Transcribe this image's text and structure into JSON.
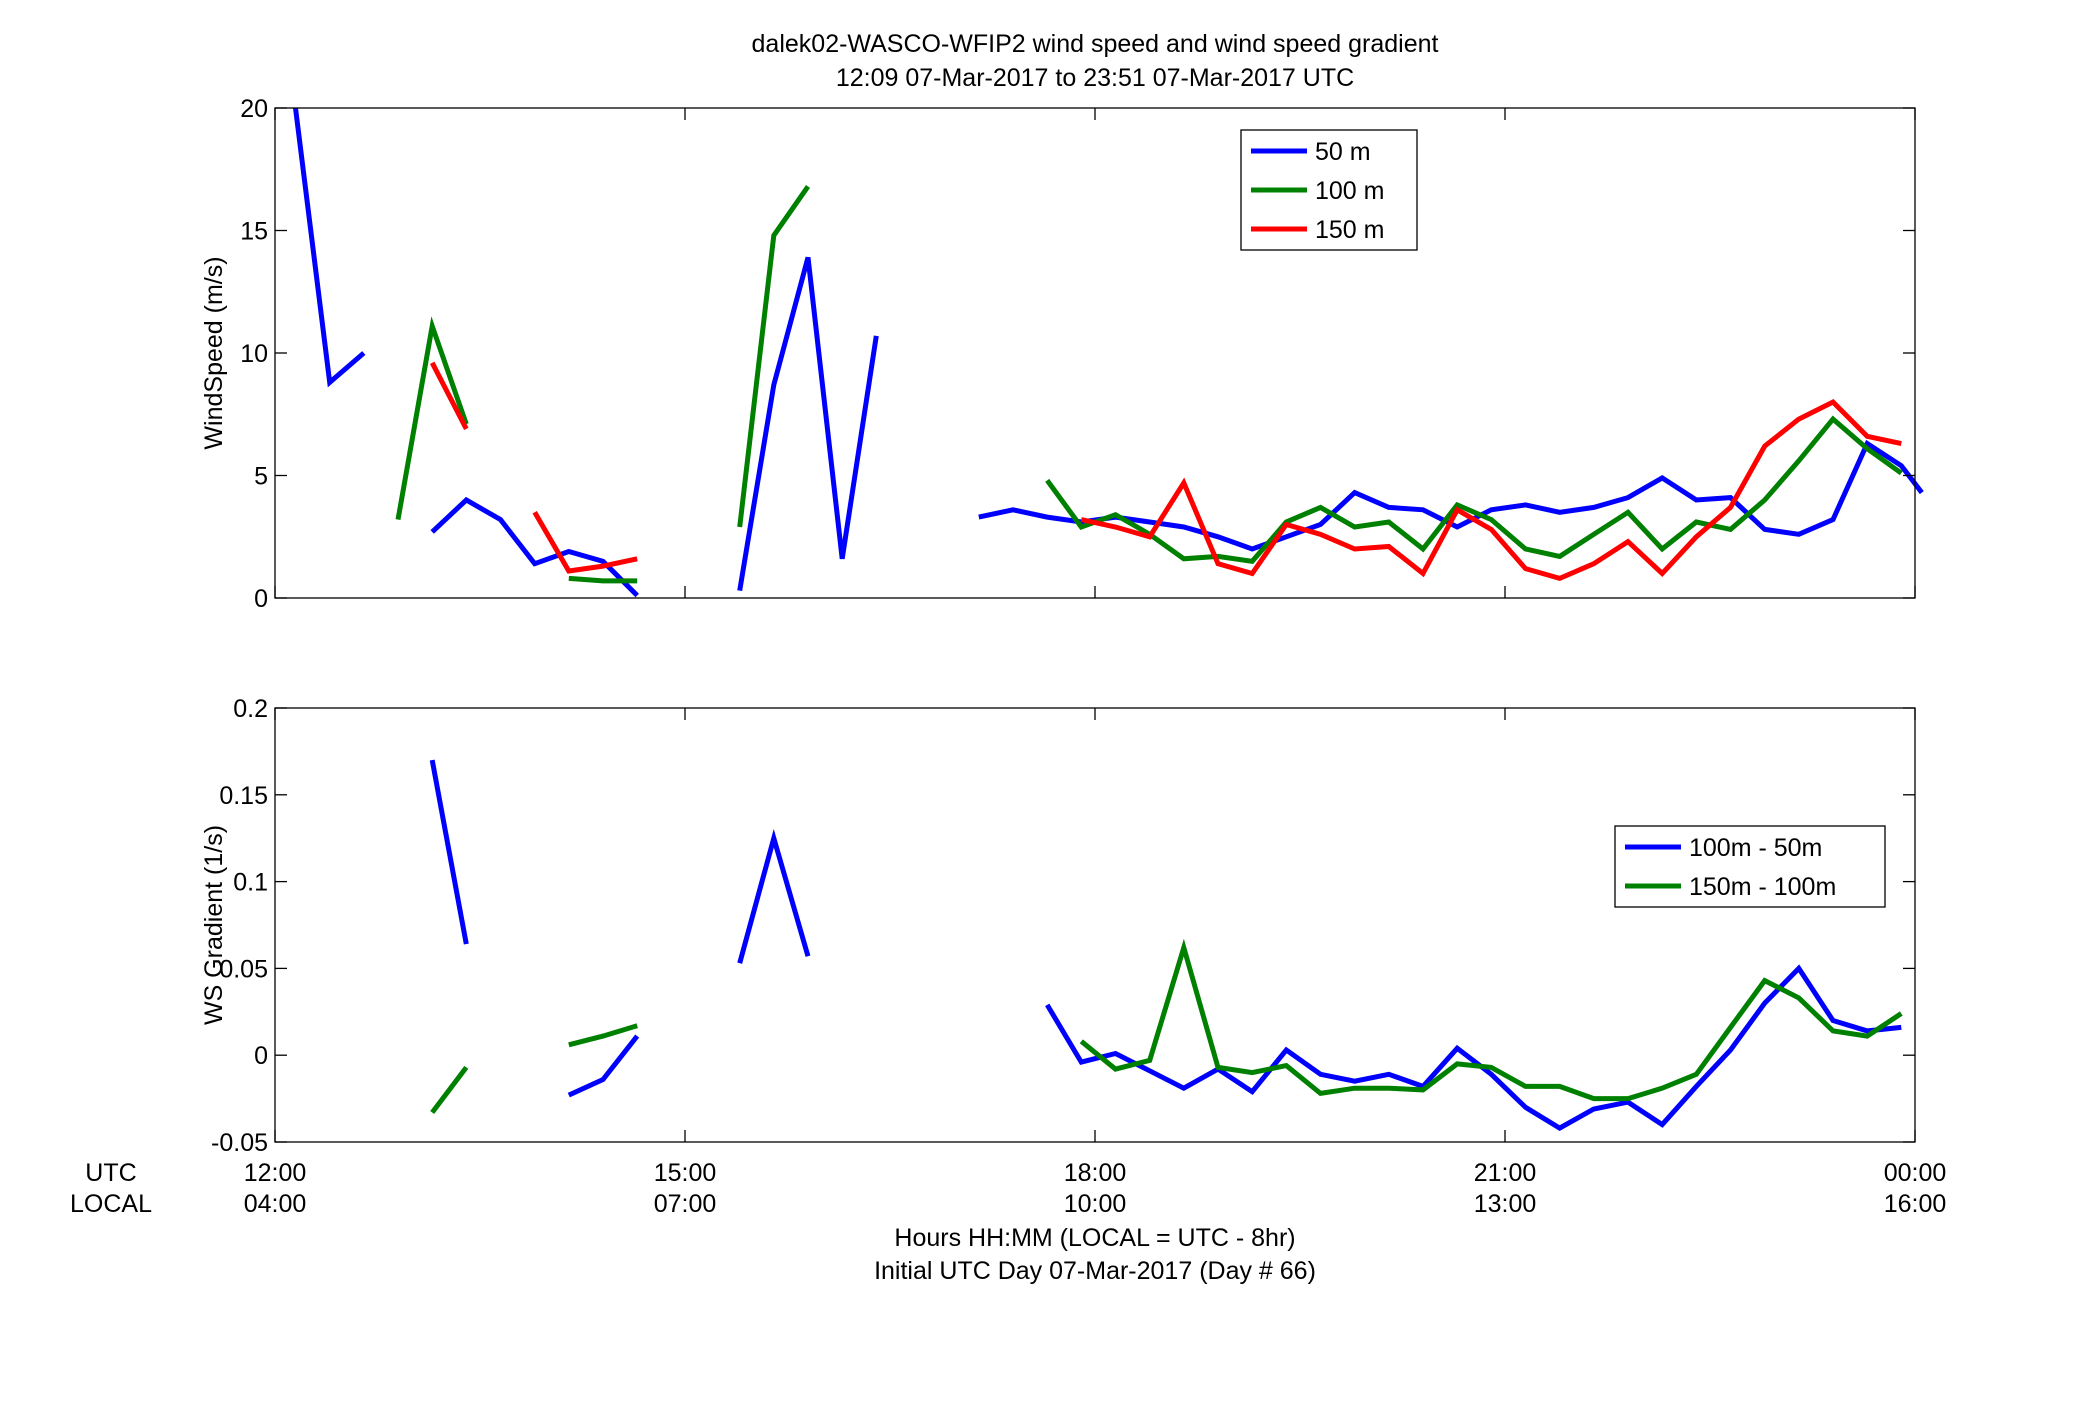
{
  "title": {
    "line1": "dalek02-WASCO-WFIP2  wind speed and wind speed gradient",
    "line2": "12:09 07-Mar-2017 to 23:51 07-Mar-2017  UTC"
  },
  "xaxis": {
    "ticks_utc": [
      "12:00",
      "15:00",
      "18:00",
      "21:00",
      "00:00"
    ],
    "ticks_local": [
      "04:00",
      "07:00",
      "10:00",
      "13:00",
      "16:00"
    ],
    "row_label_utc": "UTC",
    "row_label_local": "LOCAL",
    "label_line1": "Hours HH:MM  (LOCAL = UTC - 8hr)",
    "label_line2": "Initial UTC Day 07-Mar-2017 (Day # 66)"
  },
  "chart_data": [
    {
      "type": "line",
      "ylabel": "WindSpeed (m/s)",
      "xlim": [
        12,
        24
      ],
      "ylim": [
        0,
        20
      ],
      "yticks": [
        "0",
        "5",
        "10",
        "15",
        "20"
      ],
      "legend_position": "top-right",
      "series": [
        {
          "name": "50 m",
          "color": "#0000ff",
          "segments": [
            [
              [
                12.15,
                20.0
              ],
              [
                12.4,
                8.8
              ],
              [
                12.65,
                10.0
              ]
            ],
            [
              [
                13.15,
                2.7
              ],
              [
                13.4,
                4.0
              ],
              [
                13.65,
                3.2
              ],
              [
                13.9,
                1.4
              ],
              [
                14.15,
                1.9
              ],
              [
                14.4,
                1.5
              ],
              [
                14.65,
                0.1
              ]
            ],
            [
              [
                15.4,
                0.3
              ],
              [
                15.65,
                8.7
              ],
              [
                15.9,
                13.9
              ],
              [
                16.15,
                1.6
              ],
              [
                16.4,
                10.7
              ]
            ],
            [
              [
                17.15,
                3.3
              ],
              [
                17.4,
                3.6
              ],
              [
                17.65,
                3.3
              ],
              [
                17.9,
                3.1
              ],
              [
                18.15,
                3.3
              ],
              [
                18.4,
                3.1
              ],
              [
                18.65,
                2.9
              ],
              [
                18.9,
                2.5
              ],
              [
                19.15,
                2.0
              ],
              [
                19.4,
                2.5
              ],
              [
                19.65,
                3.0
              ],
              [
                19.9,
                4.3
              ],
              [
                20.15,
                3.7
              ],
              [
                20.4,
                3.6
              ],
              [
                20.65,
                2.9
              ],
              [
                20.9,
                3.6
              ],
              [
                21.15,
                3.8
              ],
              [
                21.4,
                3.5
              ],
              [
                21.65,
                3.7
              ],
              [
                21.9,
                4.1
              ],
              [
                22.15,
                4.9
              ],
              [
                22.4,
                4.0
              ],
              [
                22.65,
                4.1
              ],
              [
                22.9,
                2.8
              ],
              [
                23.15,
                2.6
              ],
              [
                23.4,
                3.2
              ],
              [
                23.65,
                6.3
              ],
              [
                23.9,
                5.4
              ],
              [
                24.05,
                4.3
              ]
            ]
          ]
        },
        {
          "name": "100 m",
          "color": "#008000",
          "segments": [
            [
              [
                12.9,
                3.2
              ],
              [
                13.15,
                11.1
              ],
              [
                13.4,
                7.1
              ]
            ],
            [
              [
                14.15,
                0.8
              ],
              [
                14.4,
                0.7
              ],
              [
                14.65,
                0.7
              ]
            ],
            [
              [
                15.4,
                2.9
              ],
              [
                15.65,
                14.8
              ],
              [
                15.9,
                16.8
              ]
            ],
            [
              [
                17.65,
                4.8
              ],
              [
                17.9,
                2.9
              ],
              [
                18.15,
                3.4
              ],
              [
                18.4,
                2.6
              ],
              [
                18.65,
                1.6
              ],
              [
                18.9,
                1.7
              ],
              [
                19.15,
                1.5
              ],
              [
                19.4,
                3.1
              ],
              [
                19.65,
                3.7
              ],
              [
                19.9,
                2.9
              ],
              [
                20.15,
                3.1
              ],
              [
                20.4,
                2.0
              ],
              [
                20.65,
                3.8
              ],
              [
                20.9,
                3.2
              ],
              [
                21.15,
                2.0
              ],
              [
                21.4,
                1.7
              ],
              [
                21.65,
                2.6
              ],
              [
                21.9,
                3.5
              ],
              [
                22.15,
                2.0
              ],
              [
                22.4,
                3.1
              ],
              [
                22.65,
                2.8
              ],
              [
                22.9,
                4.0
              ],
              [
                23.15,
                5.6
              ],
              [
                23.4,
                7.3
              ],
              [
                23.65,
                6.1
              ],
              [
                23.9,
                5.1
              ]
            ]
          ]
        },
        {
          "name": "150 m",
          "color": "#ff0000",
          "segments": [
            [
              [
                13.15,
                9.6
              ],
              [
                13.4,
                6.9
              ]
            ],
            [
              [
                13.9,
                3.5
              ],
              [
                14.15,
                1.1
              ],
              [
                14.4,
                1.3
              ],
              [
                14.65,
                1.6
              ]
            ],
            [
              [
                17.9,
                3.2
              ],
              [
                18.15,
                2.9
              ],
              [
                18.4,
                2.5
              ],
              [
                18.65,
                4.7
              ],
              [
                18.9,
                1.4
              ],
              [
                19.15,
                1.0
              ],
              [
                19.4,
                3.0
              ],
              [
                19.65,
                2.6
              ],
              [
                19.9,
                2.0
              ],
              [
                20.15,
                2.1
              ],
              [
                20.4,
                1.0
              ],
              [
                20.65,
                3.6
              ],
              [
                20.9,
                2.8
              ],
              [
                21.15,
                1.2
              ],
              [
                21.4,
                0.8
              ],
              [
                21.65,
                1.4
              ],
              [
                21.9,
                2.3
              ],
              [
                22.15,
                1.0
              ],
              [
                22.4,
                2.5
              ],
              [
                22.65,
                3.7
              ],
              [
                22.9,
                6.2
              ],
              [
                23.15,
                7.3
              ],
              [
                23.4,
                8.0
              ],
              [
                23.65,
                6.6
              ],
              [
                23.9,
                6.3
              ]
            ]
          ]
        }
      ]
    },
    {
      "type": "line",
      "ylabel": "WS Gradient (1/s)",
      "xlim": [
        12,
        24
      ],
      "ylim": [
        -0.05,
        0.2
      ],
      "yticks": [
        "-0.05",
        "0",
        "0.05",
        "0.1",
        "0.15",
        "0.2"
      ],
      "legend_position": "right",
      "series": [
        {
          "name": "100m - 50m",
          "color": "#0000ff",
          "segments": [
            [
              [
                13.15,
                0.17
              ],
              [
                13.4,
                0.064
              ]
            ],
            [
              [
                14.15,
                -0.023
              ],
              [
                14.4,
                -0.014
              ],
              [
                14.65,
                0.011
              ]
            ],
            [
              [
                15.4,
                0.053
              ],
              [
                15.65,
                0.125
              ],
              [
                15.9,
                0.057
              ]
            ],
            [
              [
                17.65,
                0.029
              ],
              [
                17.9,
                -0.004
              ],
              [
                18.15,
                0.001
              ],
              [
                18.4,
                -0.009
              ],
              [
                18.65,
                -0.019
              ],
              [
                18.9,
                -0.008
              ],
              [
                19.15,
                -0.021
              ],
              [
                19.4,
                0.003
              ],
              [
                19.65,
                -0.011
              ],
              [
                19.9,
                -0.015
              ],
              [
                20.15,
                -0.011
              ],
              [
                20.4,
                -0.018
              ],
              [
                20.65,
                0.004
              ],
              [
                20.9,
                -0.011
              ],
              [
                21.15,
                -0.03
              ],
              [
                21.4,
                -0.042
              ],
              [
                21.65,
                -0.031
              ],
              [
                21.9,
                -0.027
              ],
              [
                22.15,
                -0.04
              ],
              [
                22.4,
                -0.018
              ],
              [
                22.65,
                0.003
              ],
              [
                22.9,
                0.03
              ],
              [
                23.15,
                0.05
              ],
              [
                23.4,
                0.02
              ],
              [
                23.65,
                0.014
              ],
              [
                23.9,
                0.016
              ]
            ]
          ]
        },
        {
          "name": "150m - 100m",
          "color": "#008000",
          "segments": [
            [
              [
                13.15,
                -0.033
              ],
              [
                13.4,
                -0.007
              ]
            ],
            [
              [
                14.15,
                0.006
              ],
              [
                14.4,
                0.011
              ],
              [
                14.65,
                0.017
              ]
            ],
            [
              [
                17.9,
                0.008
              ],
              [
                18.15,
                -0.008
              ],
              [
                18.4,
                -0.003
              ],
              [
                18.65,
                0.062
              ],
              [
                18.9,
                -0.007
              ],
              [
                19.15,
                -0.01
              ],
              [
                19.4,
                -0.006
              ],
              [
                19.65,
                -0.022
              ],
              [
                19.9,
                -0.019
              ],
              [
                20.15,
                -0.019
              ],
              [
                20.4,
                -0.02
              ],
              [
                20.65,
                -0.005
              ],
              [
                20.9,
                -0.007
              ],
              [
                21.15,
                -0.018
              ],
              [
                21.4,
                -0.018
              ],
              [
                21.65,
                -0.025
              ],
              [
                21.9,
                -0.025
              ],
              [
                22.15,
                -0.019
              ],
              [
                22.4,
                -0.011
              ],
              [
                22.65,
                0.016
              ],
              [
                22.9,
                0.043
              ],
              [
                23.15,
                0.033
              ],
              [
                23.4,
                0.014
              ],
              [
                23.65,
                0.011
              ],
              [
                23.9,
                0.024
              ]
            ]
          ]
        }
      ]
    }
  ]
}
